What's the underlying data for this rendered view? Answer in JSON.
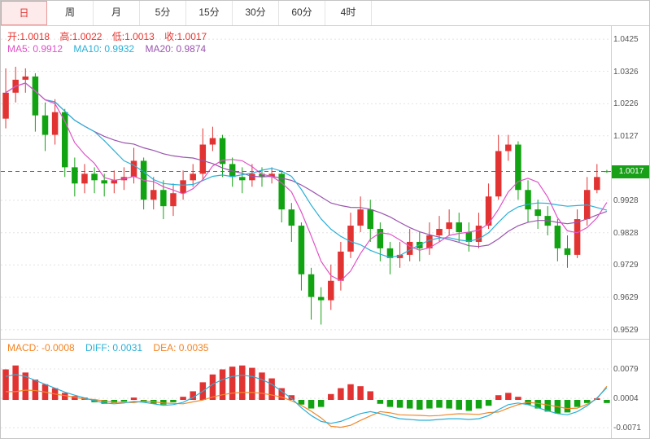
{
  "tabs": {
    "items": [
      {
        "id": "day",
        "label": "日",
        "active": true
      },
      {
        "id": "week",
        "label": "周",
        "active": false
      },
      {
        "id": "month",
        "label": "月",
        "active": false
      },
      {
        "id": "m5",
        "label": "5分",
        "active": false
      },
      {
        "id": "m15",
        "label": "15分",
        "active": false
      },
      {
        "id": "m30",
        "label": "30分",
        "active": false
      },
      {
        "id": "m60",
        "label": "60分",
        "active": false
      },
      {
        "id": "h4",
        "label": "4时",
        "active": false
      }
    ]
  },
  "main": {
    "ohlc": {
      "open": "开:1.0018",
      "high": "高:1.0022",
      "low": "低:1.0013",
      "close": "收:1.0017"
    },
    "ma": {
      "ma5": "MA5: 0.9912",
      "ma10": "MA10: 0.9932",
      "ma20": "MA20: 0.9874"
    },
    "price_tag": "1.0017",
    "axis_labels": [
      "1.0425",
      "1.0326",
      "1.0226",
      "1.0127",
      "0.9928",
      "0.9828",
      "0.9729",
      "0.9629",
      "0.9529"
    ]
  },
  "macd": {
    "header": {
      "macd": "MACD: -0.0008",
      "diff": "DIFF: 0.0031",
      "dea": "DEA: 0.0035"
    },
    "axis_labels": [
      "0.0079",
      "0.0004",
      "-0.0071"
    ]
  },
  "colors": {
    "up": "#e23333",
    "down": "#12a312",
    "ma5": "#e052c8",
    "ma10": "#2ab0d8",
    "ma20": "#9a55ae",
    "diff_line": "#2ab0d8",
    "dea_line": "#f0882a",
    "price_line": "#18a018",
    "tag_bg": "#18a018",
    "accent_tab": "#e03030"
  },
  "chart_data": [
    {
      "type": "candlestick",
      "title": "",
      "ylim": [
        0.9501,
        1.0468
      ],
      "y_ticks": [
        1.0425,
        1.0326,
        1.0226,
        1.0127,
        0.9928,
        0.9828,
        0.9729,
        0.9629,
        0.9529
      ],
      "last_price": 1.0017,
      "legend": [
        "MA5",
        "MA10",
        "MA20"
      ],
      "overlays": [
        {
          "name": "MA5",
          "window": 5
        },
        {
          "name": "MA10",
          "window": 10
        },
        {
          "name": "MA20",
          "window": 20
        }
      ],
      "ohlc": [
        [
          1.018,
          1.0335,
          1.015,
          1.026
        ],
        [
          1.026,
          1.034,
          1.023,
          1.03
        ],
        [
          1.03,
          1.0335,
          1.026,
          1.031
        ],
        [
          1.031,
          1.032,
          1.014,
          1.019
        ],
        [
          1.019,
          1.023,
          1.008,
          1.013
        ],
        [
          1.013,
          1.024,
          1.01,
          1.02
        ],
        [
          1.02,
          1.021,
          1.0,
          1.003
        ],
        [
          1.003,
          1.006,
          0.994,
          0.998
        ],
        [
          0.998,
          1.004,
          0.995,
          1.001
        ],
        [
          1.001,
          1.003,
          0.995,
          0.999
        ],
        [
          0.999,
          1.001,
          0.994,
          0.998
        ],
        [
          0.998,
          1.002,
          0.995,
          0.999
        ],
        [
          0.999,
          1.003,
          0.996,
          1.0
        ],
        [
          1.0,
          1.009,
          0.998,
          1.005
        ],
        [
          1.005,
          1.006,
          0.99,
          0.993
        ],
        [
          0.993,
          1.0,
          0.99,
          0.996
        ],
        [
          0.996,
          0.999,
          0.987,
          0.991
        ],
        [
          0.991,
          0.998,
          0.988,
          0.995
        ],
        [
          0.995,
          1.002,
          0.993,
          0.999
        ],
        [
          0.999,
          1.004,
          0.997,
          1.001
        ],
        [
          1.001,
          1.015,
          0.999,
          1.01
        ],
        [
          1.01,
          1.0155,
          1.008,
          1.012
        ],
        [
          1.012,
          1.013,
          1.0,
          1.004
        ],
        [
          1.004,
          1.006,
          0.997,
          1.0
        ],
        [
          1.0,
          1.003,
          0.995,
          0.999
        ],
        [
          0.999,
          1.004,
          0.997,
          1.001
        ],
        [
          1.001,
          1.003,
          0.997,
          1.0
        ],
        [
          1.0,
          1.003,
          0.998,
          1.001
        ],
        [
          1.001,
          1.002,
          0.986,
          0.99
        ],
        [
          0.99,
          0.992,
          0.98,
          0.985
        ],
        [
          0.985,
          0.986,
          0.965,
          0.97
        ],
        [
          0.97,
          0.972,
          0.956,
          0.963
        ],
        [
          0.963,
          0.966,
          0.9545,
          0.962
        ],
        [
          0.962,
          0.973,
          0.959,
          0.968
        ],
        [
          0.968,
          0.98,
          0.965,
          0.977
        ],
        [
          0.977,
          0.989,
          0.975,
          0.985
        ],
        [
          0.985,
          0.994,
          0.983,
          0.99
        ],
        [
          0.99,
          0.993,
          0.98,
          0.984
        ],
        [
          0.984,
          0.986,
          0.974,
          0.978
        ],
        [
          0.978,
          0.98,
          0.97,
          0.975
        ],
        [
          0.975,
          0.98,
          0.972,
          0.976
        ],
        [
          0.976,
          0.984,
          0.974,
          0.98
        ],
        [
          0.98,
          0.983,
          0.974,
          0.978
        ],
        [
          0.978,
          0.986,
          0.976,
          0.982
        ],
        [
          0.982,
          0.988,
          0.98,
          0.984
        ],
        [
          0.984,
          0.99,
          0.982,
          0.986
        ],
        [
          0.986,
          0.989,
          0.98,
          0.983
        ],
        [
          0.983,
          0.986,
          0.977,
          0.98
        ],
        [
          0.98,
          0.989,
          0.978,
          0.985
        ],
        [
          0.985,
          0.998,
          0.984,
          0.994
        ],
        [
          0.994,
          1.013,
          0.993,
          1.008
        ],
        [
          1.008,
          1.013,
          1.005,
          1.01
        ],
        [
          1.01,
          1.011,
          0.993,
          0.996
        ],
        [
          0.996,
          0.999,
          0.986,
          0.99
        ],
        [
          0.99,
          0.993,
          0.984,
          0.988
        ],
        [
          0.988,
          0.991,
          0.982,
          0.985
        ],
        [
          0.985,
          0.987,
          0.974,
          0.978
        ],
        [
          0.978,
          0.982,
          0.972,
          0.976
        ],
        [
          0.976,
          0.99,
          0.975,
          0.987
        ],
        [
          0.987,
          1.0,
          0.985,
          0.996
        ],
        [
          0.996,
          1.004,
          0.995,
          1.0
        ],
        [
          1.0018,
          1.0022,
          1.0013,
          1.0017
        ]
      ]
    },
    {
      "type": "bar",
      "name": "MACD",
      "ylim": [
        -0.0102,
        0.0154
      ],
      "y_ticks": [
        0.0079,
        0.0004,
        -0.0071
      ],
      "values": [
        0.0078,
        0.0088,
        0.007,
        0.0052,
        0.004,
        0.003,
        0.0018,
        0.001,
        0.0006,
        -0.0006,
        -0.001,
        -0.0008,
        -0.0004,
        0.0006,
        -0.0006,
        -0.001,
        -0.0012,
        -0.0006,
        0.0008,
        0.0022,
        0.0045,
        0.0065,
        0.0078,
        0.0085,
        0.0088,
        0.0082,
        0.007,
        0.0055,
        0.003,
        0.0012,
        -0.0012,
        -0.0022,
        -0.0018,
        0.0015,
        0.003,
        0.004,
        0.0035,
        0.0022,
        -0.001,
        -0.0018,
        -0.002,
        -0.0022,
        -0.0025,
        -0.0022,
        -0.002,
        -0.0022,
        -0.0025,
        -0.0028,
        -0.0022,
        -0.0015,
        0.0012,
        0.0018,
        0.0008,
        -0.0012,
        -0.0022,
        -0.003,
        -0.0035,
        -0.0032,
        -0.0018,
        -0.0008,
        0.0004,
        -0.0008
      ],
      "lines": [
        {
          "name": "DIFF",
          "values": [
            0.006,
            0.0065,
            0.006,
            0.005,
            0.004,
            0.003,
            0.002,
            0.0012,
            0.0005,
            -0.0002,
            -0.0008,
            -0.001,
            -0.0008,
            -0.0004,
            -0.0006,
            -0.001,
            -0.0014,
            -0.0012,
            -0.0006,
            0.0006,
            0.0022,
            0.004,
            0.0052,
            0.006,
            0.0063,
            0.006,
            0.0052,
            0.004,
            0.0022,
            0.0004,
            -0.002,
            -0.004,
            -0.0055,
            -0.006,
            -0.0055,
            -0.0045,
            -0.0035,
            -0.003,
            -0.0035,
            -0.0042,
            -0.0048,
            -0.005,
            -0.0052,
            -0.0052,
            -0.005,
            -0.0048,
            -0.0048,
            -0.005,
            -0.0048,
            -0.004,
            -0.0025,
            -0.0012,
            -0.0008,
            -0.0012,
            -0.002,
            -0.0028,
            -0.0035,
            -0.0038,
            -0.003,
            -0.0015,
            0.0005,
            0.0031
          ]
        },
        {
          "name": "DEA",
          "derive": "diff_minus_half_macd"
        }
      ]
    }
  ]
}
